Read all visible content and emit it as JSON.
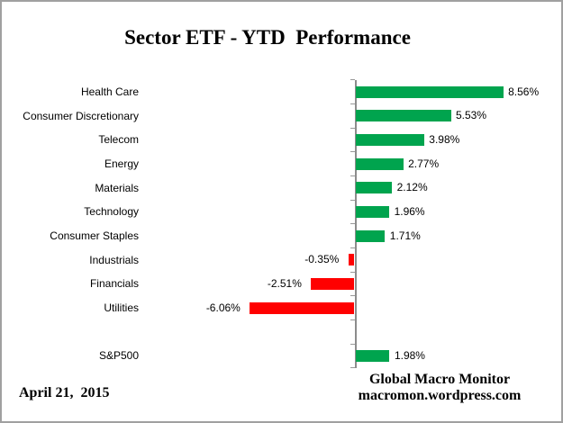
{
  "frame": {
    "background": "#FFFFFF",
    "border_color": "#A0A0A0"
  },
  "chart_data": {
    "type": "bar",
    "orientation": "horizontal",
    "title": "Sector ETF - YTD  Performance",
    "categories": [
      "Health Care",
      "Consumer Discretionary",
      "Telecom",
      "Energy",
      "Materials",
      "Technology",
      "Consumer Staples",
      "Industrials",
      "Financials",
      "Utilities",
      "S&P500"
    ],
    "values": [
      8.56,
      5.53,
      3.98,
      2.77,
      2.12,
      1.96,
      1.71,
      -0.35,
      -2.51,
      -6.06,
      1.98
    ],
    "value_labels": [
      "8.56%",
      "5.53%",
      "3.98%",
      "2.77%",
      "2.12%",
      "1.96%",
      "1.71%",
      "-0.35%",
      "-2.51%",
      "-6.06%",
      "1.98%"
    ],
    "slot_index": [
      0,
      1,
      2,
      3,
      4,
      5,
      6,
      7,
      8,
      9,
      11
    ],
    "slot_count": 12,
    "xlabel": "",
    "ylabel": "",
    "xlim": [
      -7,
      10
    ],
    "grid": false,
    "legend": false,
    "axis_at_zero": true,
    "colors": {
      "positive": "#00A44E",
      "negative": "#FF0000",
      "axis": "#8C8C8C",
      "tick": "#999999",
      "text": "#000000"
    }
  },
  "footer": {
    "date": "April 21,  2015",
    "attribution_line1": "Global Macro Monitor",
    "attribution_line2": "macromon.wordpress.com"
  }
}
